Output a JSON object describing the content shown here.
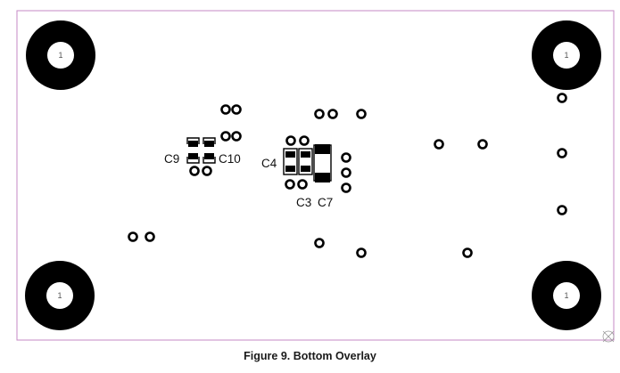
{
  "figure": {
    "caption": "Figure 9. Bottom Overlay"
  },
  "colors": {
    "board_outline": "#c58ac5",
    "silkscreen": "#000000",
    "background": "#ffffff"
  },
  "mounting_holes": [
    {
      "id": "mh-top-left",
      "label": "1"
    },
    {
      "id": "mh-top-right",
      "label": "1"
    },
    {
      "id": "mh-bottom-left",
      "label": "1"
    },
    {
      "id": "mh-bottom-right",
      "label": "1"
    }
  ],
  "component_labels": {
    "c9": "C9",
    "c10": "C10",
    "c4": "C4",
    "c3": "C3",
    "c7": "C7"
  }
}
